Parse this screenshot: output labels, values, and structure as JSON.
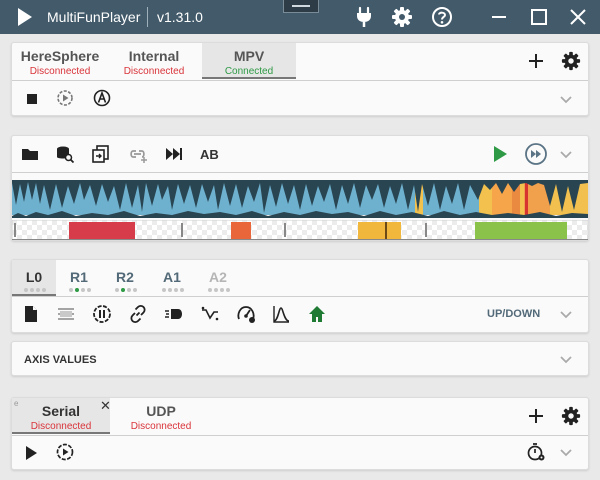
{
  "app": {
    "name": "MultiFunPlayer",
    "version": "v1.31.0"
  },
  "media_sources": {
    "tabs": [
      {
        "label": "HereSphere",
        "status": "Disconnected"
      },
      {
        "label": "Internal",
        "status": "Disconnected"
      },
      {
        "label": "MPV",
        "status": "Connected"
      }
    ]
  },
  "media_toolbar": {
    "ab_label": "AB"
  },
  "heatmap": {
    "segment_colors": [
      "#d63c4a",
      "#e9663a",
      "#f1b63c",
      "#8bc34a"
    ]
  },
  "axes": {
    "tabs": [
      {
        "label": "L0"
      },
      {
        "label": "R1"
      },
      {
        "label": "R2"
      },
      {
        "label": "A1"
      },
      {
        "label": "A2"
      }
    ],
    "motion_label": "UP/DOWN"
  },
  "axis_values": {
    "label": "AXIS VALUES"
  },
  "outputs": {
    "tabs": [
      {
        "label": "Serial",
        "status": "Disconnected"
      },
      {
        "label": "UDP",
        "status": "Disconnected"
      }
    ]
  },
  "colors": {
    "titlebar": "#425a6a",
    "accent": "#2e9a45",
    "disconnected": "#d9343a"
  }
}
